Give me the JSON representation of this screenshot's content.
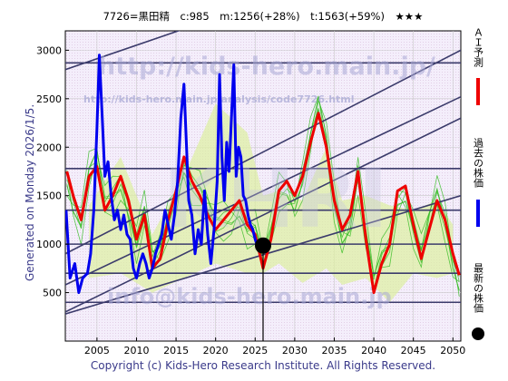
{
  "header": {
    "title": "7726=黒田精　c:985　m:1256(+28%)　t:1563(+59%)　★★★"
  },
  "side_labels": {
    "generated": "Generated on Monday 2026/1/5.",
    "copyright": "Copyright (c) Kids-Hero Research Institute. All Rights Reserved."
  },
  "watermarks": {
    "url_main": "http://kids-hero.main.jp/",
    "url_code": "http://kids-hero.main.jp/analysis/code7726.html",
    "email": "info@kids-hero.main.jp",
    "logo": "KHRI"
  },
  "legend": [
    {
      "label": "ＡＩ予測",
      "color": "#ee0000",
      "marker": "line"
    },
    {
      "label": "過去の株価",
      "color": "#0000ee",
      "marker": "line"
    },
    {
      "label": "最新の株価",
      "color": "#000000",
      "marker": "dot"
    }
  ],
  "colors": {
    "ai_prediction": "#ee0000",
    "past_price": "#0000ee",
    "latest_dot": "#000000",
    "scenario_lines": "#33bb22",
    "scenario_fill": "#ddf0a0",
    "channel_lines": "#3b3b6b",
    "plot_bg": "#f3eefa"
  },
  "chart_data": {
    "type": "line",
    "title": "7726=黒田精　c:985　m:1256(+28%)　t:1563(+59%)　★★★",
    "xlim": [
      2001,
      2051
    ],
    "ylim": [
      0,
      3200
    ],
    "x_ticks": [
      2005,
      2010,
      2015,
      2020,
      2025,
      2030,
      2035,
      2040,
      2045,
      2050
    ],
    "y_ticks": [
      500,
      1000,
      1500,
      2000,
      2500,
      3000
    ],
    "grid": true,
    "latest": {
      "x": 2026.0,
      "y": 985
    },
    "horizontal_levels": [
      400,
      700,
      1000,
      1350,
      1780,
      2870
    ],
    "trend_channels": [
      {
        "x": [
          2001,
          2051
        ],
        "y": [
          300,
          2300
        ]
      },
      {
        "x": [
          2001,
          2051
        ],
        "y": [
          580,
          2520
        ]
      },
      {
        "x": [
          2001,
          2051
        ],
        "y": [
          900,
          3000
        ]
      },
      {
        "x": [
          2001,
          2051
        ],
        "y": [
          2800,
          4200
        ]
      },
      {
        "x": [
          2001,
          2051
        ],
        "y": [
          280,
          1500
        ]
      }
    ],
    "band_upper": {
      "x": [
        2004,
        2008,
        2012,
        2016,
        2020,
        2024,
        2026,
        2028,
        2031,
        2034,
        2036,
        2039,
        2042,
        2045,
        2048,
        2050
      ],
      "y": [
        1400,
        1900,
        1100,
        1700,
        2450,
        2150,
        1500,
        1550,
        1450,
        2000,
        1450,
        1500,
        1400,
        1350,
        1450,
        1200
      ]
    },
    "band_lower": {
      "x": [
        2004,
        2008,
        2012,
        2016,
        2020,
        2024,
        2026,
        2028,
        2031,
        2034,
        2036,
        2039,
        2042,
        2045,
        2048,
        2050
      ],
      "y": [
        650,
        700,
        500,
        650,
        800,
        700,
        700,
        800,
        600,
        750,
        580,
        650,
        400,
        700,
        650,
        700
      ]
    },
    "series": [
      {
        "name": "ＡＩ予測",
        "x": [
          2001.2,
          2002,
          2003,
          2004,
          2005,
          2006,
          2007,
          2008,
          2009,
          2010,
          2011,
          2012,
          2013,
          2014,
          2015,
          2016,
          2017,
          2018,
          2019,
          2020,
          2021,
          2022,
          2023,
          2024,
          2025,
          2026,
          2027,
          2028,
          2029,
          2030,
          2031,
          2032,
          2033,
          2034,
          2035,
          2036,
          2037,
          2038,
          2039,
          2040,
          2041,
          2042,
          2043,
          2044,
          2045,
          2046,
          2047,
          2048,
          2049,
          2050,
          2050.8
        ],
        "y": [
          1750,
          1500,
          1250,
          1700,
          1800,
          1350,
          1500,
          1700,
          1450,
          1050,
          1300,
          750,
          850,
          1250,
          1550,
          1900,
          1650,
          1500,
          1300,
          1150,
          1250,
          1350,
          1450,
          1200,
          1100,
          750,
          1050,
          1550,
          1650,
          1500,
          1700,
          2050,
          2350,
          2000,
          1450,
          1150,
          1300,
          1750,
          1050,
          500,
          800,
          1000,
          1550,
          1600,
          1200,
          850,
          1150,
          1450,
          1250,
          900,
          680
        ]
      },
      {
        "name": "過去の株価",
        "x": [
          2001.1,
          2001.6,
          2002.2,
          2002.7,
          2003.2,
          2003.8,
          2004.2,
          2004.6,
          2005,
          2005.3,
          2005.7,
          2006,
          2006.4,
          2006.8,
          2007.2,
          2007.6,
          2008,
          2008.4,
          2008.8,
          2009.2,
          2009.6,
          2010,
          2010.4,
          2010.8,
          2011.2,
          2011.6,
          2012,
          2012.4,
          2012.8,
          2013.2,
          2013.6,
          2014,
          2014.4,
          2014.8,
          2015.2,
          2015.6,
          2016,
          2016.3,
          2016.6,
          2017,
          2017.4,
          2017.8,
          2018.2,
          2018.6,
          2019,
          2019.4,
          2019.8,
          2020.2,
          2020.5,
          2020.8,
          2021.1,
          2021.4,
          2021.7,
          2022,
          2022.3,
          2022.6,
          2022.9,
          2023.2,
          2023.5,
          2023.8,
          2024.1,
          2024.4,
          2024.7,
          2025,
          2025.4,
          2025.8
        ],
        "y": [
          1350,
          650,
          800,
          500,
          650,
          700,
          900,
          1350,
          2200,
          2950,
          2250,
          1700,
          1850,
          1500,
          1250,
          1350,
          1150,
          1300,
          1100,
          1050,
          750,
          650,
          800,
          900,
          800,
          650,
          750,
          900,
          1000,
          1100,
          1350,
          1200,
          1050,
          1300,
          1650,
          2300,
          2650,
          2050,
          1450,
          1300,
          900,
          1150,
          1000,
          1550,
          1100,
          800,
          1150,
          1650,
          2750,
          1900,
          1450,
          2050,
          1750,
          2300,
          2850,
          1700,
          2000,
          1900,
          1500,
          1450,
          1300,
          1200,
          1150,
          1050,
          950,
          985
        ]
      }
    ]
  }
}
